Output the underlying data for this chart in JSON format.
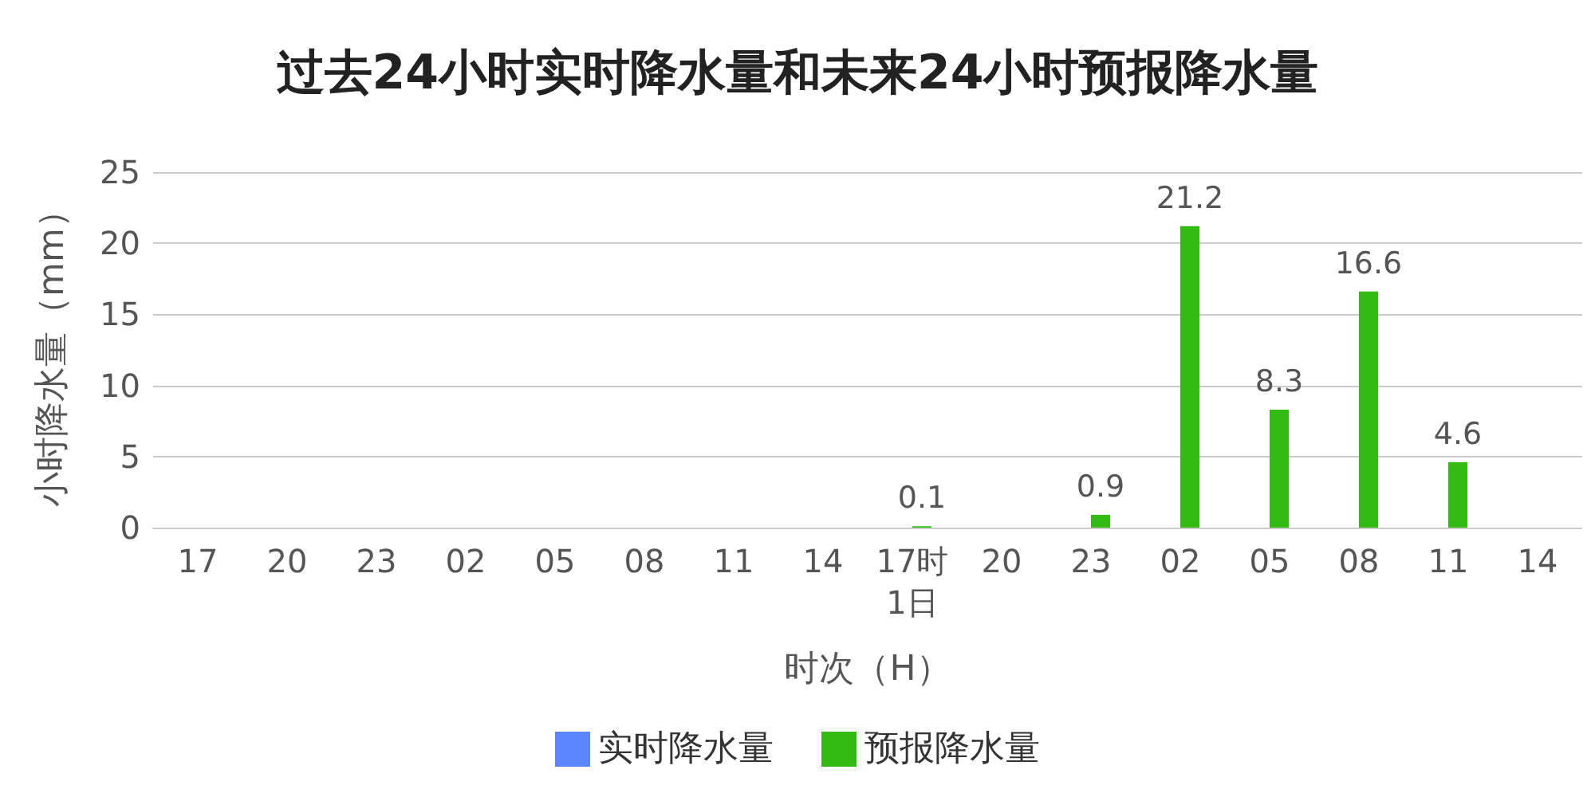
{
  "chart_data": {
    "type": "bar",
    "title": "过去24小时实时降水量和未来24小时预报降水量",
    "xlabel": "时次（H）",
    "ylabel": "小时降水量（mm）",
    "categories": [
      "17",
      "20",
      "23",
      "02",
      "05",
      "08",
      "11",
      "14",
      "17时\n1日",
      "20",
      "23",
      "02",
      "05",
      "08",
      "11",
      "14"
    ],
    "series": [
      {
        "name": "实时降水量",
        "color": "#5b86ff",
        "values": [
          null,
          null,
          null,
          null,
          null,
          null,
          null,
          null,
          null,
          null,
          null,
          null,
          null,
          null,
          null,
          null
        ]
      },
      {
        "name": "预报降水量",
        "color": "#33bb11",
        "values": [
          null,
          null,
          null,
          null,
          null,
          null,
          null,
          null,
          0.1,
          null,
          0.9,
          21.2,
          8.3,
          16.6,
          4.6,
          null
        ]
      }
    ],
    "ylim": [
      0,
      25
    ],
    "yticks": [
      0,
      5,
      10,
      15,
      20,
      25
    ],
    "grid": "y",
    "legend": "bottom",
    "data_labels": true
  }
}
